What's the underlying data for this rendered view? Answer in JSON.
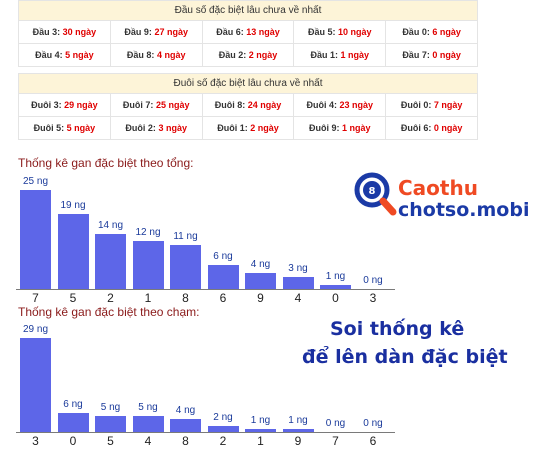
{
  "table_dau": {
    "header": "Đầu số đặc biệt lâu chưa về nhất",
    "rows": [
      [
        {
          "label": "Đầu 3:",
          "value": "30 ngày"
        },
        {
          "label": "Đầu 9:",
          "value": "27 ngày"
        },
        {
          "label": "Đầu 6:",
          "value": "13 ngày"
        },
        {
          "label": "Đầu 5:",
          "value": "10 ngày"
        },
        {
          "label": "Đầu 0:",
          "value": "6 ngày"
        }
      ],
      [
        {
          "label": "Đầu 4:",
          "value": "5 ngày"
        },
        {
          "label": "Đầu 8:",
          "value": "4 ngày"
        },
        {
          "label": "Đầu 2:",
          "value": "2 ngày"
        },
        {
          "label": "Đầu 1:",
          "value": "1 ngày"
        },
        {
          "label": "Đầu 7:",
          "value": "0 ngày"
        }
      ]
    ]
  },
  "table_duoi": {
    "header": "Đuôi số đặc biệt lâu chưa về nhất",
    "rows": [
      [
        {
          "label": "Đuôi 3:",
          "value": "29 ngày"
        },
        {
          "label": "Đuôi 7:",
          "value": "25 ngày"
        },
        {
          "label": "Đuôi 8:",
          "value": "24 ngày"
        },
        {
          "label": "Đuôi 4:",
          "value": "23 ngày"
        },
        {
          "label": "Đuôi 0:",
          "value": "7 ngày"
        }
      ],
      [
        {
          "label": "Đuôi 5:",
          "value": "5 ngày"
        },
        {
          "label": "Đuôi 2:",
          "value": "3 ngày"
        },
        {
          "label": "Đuôi 1:",
          "value": "2 ngày"
        },
        {
          "label": "Đuôi 9:",
          "value": "1 ngày"
        },
        {
          "label": "Đuôi 6:",
          "value": "0 ngày"
        }
      ]
    ]
  },
  "chart_data": [
    {
      "type": "bar",
      "title": "Thống kê gan đặc biệt theo tổng:",
      "categories": [
        "7",
        "5",
        "2",
        "1",
        "8",
        "6",
        "9",
        "4",
        "0",
        "3"
      ],
      "values": [
        25,
        19,
        14,
        12,
        11,
        6,
        4,
        3,
        1,
        0
      ],
      "data_labels": [
        "25 ng",
        "19 ng",
        "14 ng",
        "12 ng",
        "11 ng",
        "6 ng",
        "4 ng",
        "3 ng",
        "1 ng",
        "0 ng"
      ],
      "bar_color": "#5d66e8"
    },
    {
      "type": "bar",
      "title": "Thống kê gan đặc biệt theo chạm:",
      "categories": [
        "3",
        "0",
        "5",
        "4",
        "8",
        "2",
        "1",
        "9",
        "7",
        "6"
      ],
      "values": [
        29,
        6,
        5,
        5,
        4,
        2,
        1,
        1,
        0,
        0
      ],
      "data_labels": [
        "29 ng",
        "6 ng",
        "5 ng",
        "5 ng",
        "4 ng",
        "2 ng",
        "1 ng",
        "1 ng",
        "0 ng",
        "0 ng"
      ],
      "bar_color": "#5d66e8"
    }
  ],
  "logo": {
    "line1": "Caothu",
    "line2": "chotso.mobi",
    "badge": "8",
    "color_top": "#ef4a23",
    "color_bottom": "#1b3aa6"
  },
  "slogan": {
    "line1": "Soi thống kê",
    "line2": "để lên dàn đặc biệt"
  }
}
